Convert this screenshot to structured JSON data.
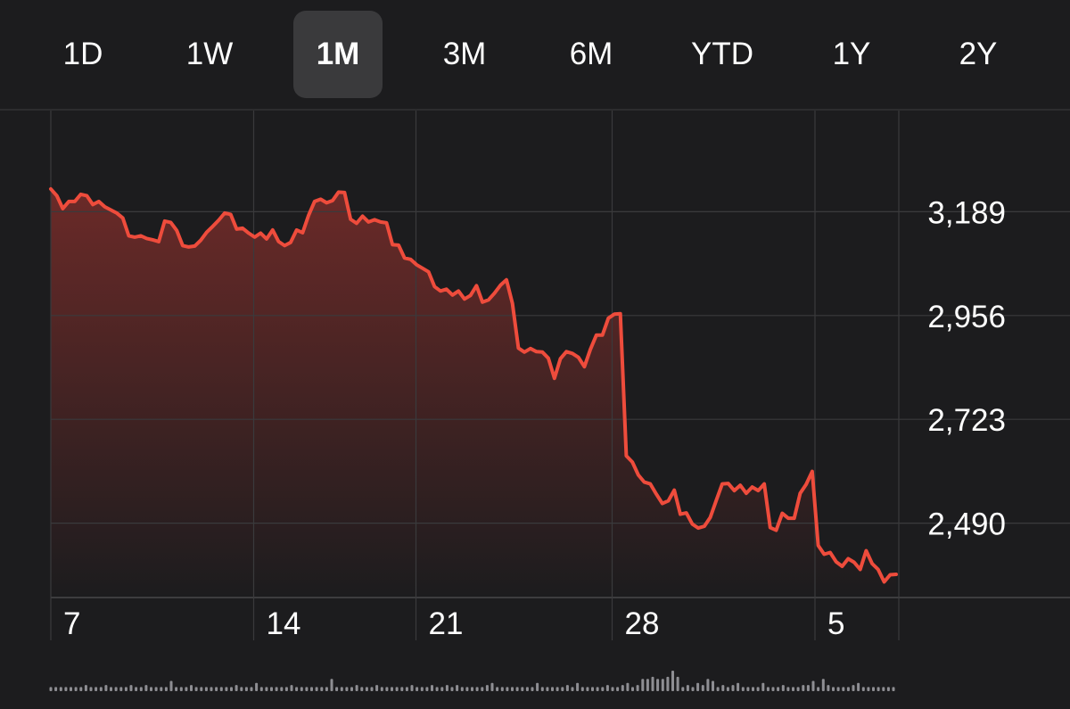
{
  "range_tabs": [
    {
      "label": "1D",
      "selected": false
    },
    {
      "label": "1W",
      "selected": false
    },
    {
      "label": "1M",
      "selected": true
    },
    {
      "label": "3M",
      "selected": false
    },
    {
      "label": "6M",
      "selected": false
    },
    {
      "label": "YTD",
      "selected": false
    },
    {
      "label": "1Y",
      "selected": false
    },
    {
      "label": "2Y",
      "selected": false
    }
  ],
  "colors": {
    "background": "#1c1c1e",
    "line": "#ee4c3c",
    "fill_top": "#6b2a28",
    "grid": "#3a3a3c",
    "tab_selected": "#3a3a3c",
    "volume": "#8e8e93"
  },
  "chart_data": {
    "type": "area",
    "y_tick_labels": [
      "3,189",
      "2,956",
      "2,723",
      "2,490"
    ],
    "y_ticks": [
      3189,
      2956,
      2723,
      2490
    ],
    "ylim": [
      2323,
      3416
    ],
    "x_tick_labels": [
      "7",
      "14",
      "21",
      "28",
      "5"
    ],
    "x_tick_positions": [
      0,
      30,
      54,
      83,
      113
    ],
    "xlim": [
      0,
      125
    ],
    "grid": true,
    "series": [
      {
        "values": [
          3240,
          3225,
          3196,
          3212,
          3212,
          3228,
          3225,
          3205,
          3212,
          3200,
          3193,
          3186,
          3175,
          3135,
          3132,
          3135,
          3129,
          3126,
          3122,
          3168,
          3165,
          3147,
          3113,
          3110,
          3112,
          3125,
          3143,
          3156,
          3170,
          3186,
          3183,
          3150,
          3152,
          3141,
          3132,
          3141,
          3128,
          3148,
          3122,
          3113,
          3120,
          3148,
          3142,
          3181,
          3212,
          3217,
          3209,
          3214,
          3233,
          3232,
          3172,
          3163,
          3179,
          3166,
          3171,
          3166,
          3164,
          3115,
          3114,
          3085,
          3082,
          3070,
          3062,
          3054,
          3021,
          3011,
          3015,
          3002,
          3011,
          2993,
          3001,
          3023,
          2986,
          2991,
          3006,
          3024,
          3036,
          2983,
          2883,
          2874,
          2882,
          2875,
          2874,
          2860,
          2815,
          2859,
          2875,
          2871,
          2862,
          2841,
          2880,
          2912,
          2912,
          2950,
          2959,
          2960,
          2641,
          2627,
          2598,
          2582,
          2578,
          2555,
          2534,
          2540,
          2564,
          2510,
          2513,
          2488,
          2479,
          2483,
          2503,
          2541,
          2578,
          2579,
          2563,
          2575,
          2557,
          2571,
          2563,
          2578,
          2480,
          2474,
          2512,
          2501,
          2501,
          2557,
          2577,
          2606,
          2440,
          2420,
          2424,
          2403,
          2393,
          2410,
          2402,
          2386,
          2428,
          2399,
          2386,
          2358,
          2374,
          2375
        ]
      }
    ],
    "volume": [
      2,
      2,
      2,
      2,
      2,
      2,
      2,
      3,
      2,
      2,
      2,
      3,
      2,
      2,
      2,
      2,
      3,
      2,
      2,
      3,
      2,
      2,
      2,
      2,
      5,
      2,
      2,
      2,
      3,
      2,
      2,
      2,
      2,
      2,
      2,
      2,
      2,
      3,
      2,
      2,
      2,
      4,
      2,
      2,
      2,
      2,
      2,
      2,
      3,
      2,
      2,
      2,
      2,
      2,
      2,
      2,
      6,
      2,
      2,
      2,
      2,
      3,
      2,
      2,
      2,
      3,
      2,
      2,
      2,
      2,
      2,
      2,
      3,
      2,
      2,
      2,
      3,
      2,
      2,
      3,
      2,
      3,
      2,
      2,
      2,
      2,
      2,
      3,
      4,
      2,
      2,
      2,
      2,
      2,
      2,
      2,
      2,
      4,
      2,
      2,
      2,
      2,
      2,
      3,
      2,
      4,
      2,
      2,
      2,
      2,
      2,
      3,
      2,
      2,
      3,
      4,
      2,
      3,
      6,
      6,
      7,
      6,
      6,
      7,
      10,
      7,
      2,
      3,
      2,
      4,
      3,
      6,
      5,
      2,
      3,
      2,
      3,
      4,
      2,
      2,
      2,
      2,
      4,
      2,
      2,
      2,
      3,
      2,
      2,
      2,
      3,
      3,
      5,
      2,
      6,
      3,
      2,
      2,
      2,
      2,
      3,
      4,
      2,
      2,
      2,
      2,
      2,
      2,
      2
    ]
  }
}
